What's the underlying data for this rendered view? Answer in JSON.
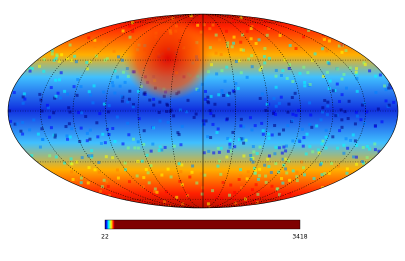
{
  "colorbar": {
    "min": 22,
    "max": 3418,
    "colors": [
      "#00007f",
      "#0000ff",
      "#007fff",
      "#00ffff",
      "#7fff7f",
      "#ffff00",
      "#ff7f00",
      "#ff0000",
      "#7f0000"
    ]
  }
}
